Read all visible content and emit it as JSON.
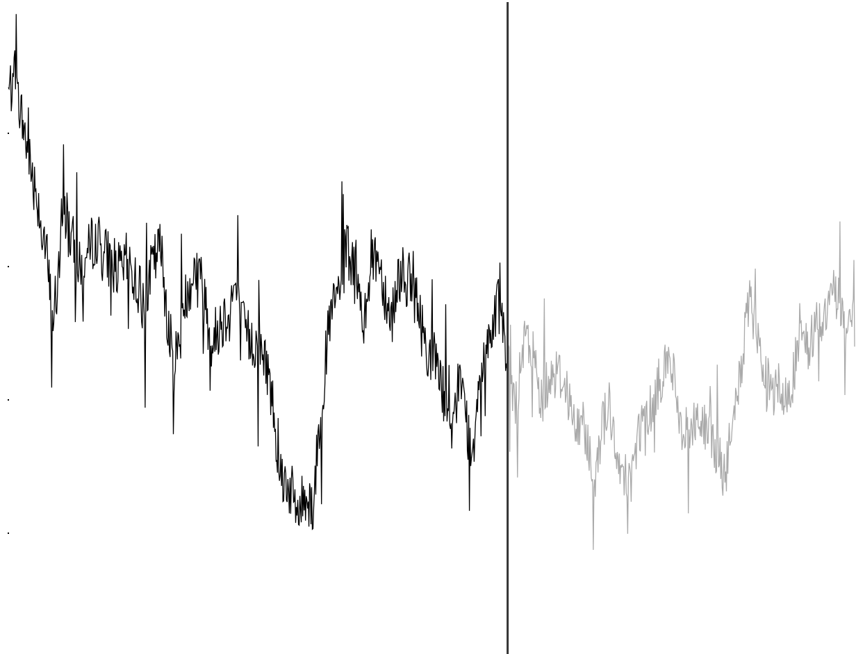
{
  "chart_data": {
    "type": "line",
    "title": "",
    "xlabel": "",
    "ylabel": "",
    "grid": false,
    "legend": "none",
    "y_range": [
      0,
      100
    ],
    "y_ticks": [
      80,
      60,
      40,
      20
    ],
    "split_index": 0.59,
    "colors": {
      "history": "#000000",
      "forecast": "#aaaaaa",
      "divider": "#333333"
    },
    "series": [
      {
        "role": "history",
        "anchors": [
          [
            0.0,
            86
          ],
          [
            0.006,
            88
          ],
          [
            0.015,
            83
          ],
          [
            0.022,
            78
          ],
          [
            0.035,
            70
          ],
          [
            0.045,
            62
          ],
          [
            0.052,
            52
          ],
          [
            0.058,
            57
          ],
          [
            0.066,
            68
          ],
          [
            0.075,
            64
          ],
          [
            0.085,
            59
          ],
          [
            0.095,
            62
          ],
          [
            0.103,
            65
          ],
          [
            0.112,
            62
          ],
          [
            0.122,
            61
          ],
          [
            0.132,
            59
          ],
          [
            0.141,
            61
          ],
          [
            0.15,
            58
          ],
          [
            0.16,
            54
          ],
          [
            0.17,
            60
          ],
          [
            0.18,
            63
          ],
          [
            0.188,
            53
          ],
          [
            0.195,
            45
          ],
          [
            0.202,
            49
          ],
          [
            0.212,
            57
          ],
          [
            0.222,
            60
          ],
          [
            0.232,
            56
          ],
          [
            0.24,
            48
          ],
          [
            0.248,
            51
          ],
          [
            0.258,
            53
          ],
          [
            0.268,
            57
          ],
          [
            0.276,
            51
          ],
          [
            0.286,
            49
          ],
          [
            0.296,
            48
          ],
          [
            0.306,
            45
          ],
          [
            0.314,
            38
          ],
          [
            0.322,
            29
          ],
          [
            0.332,
            27
          ],
          [
            0.342,
            23
          ],
          [
            0.352,
            26
          ],
          [
            0.36,
            24
          ],
          [
            0.37,
            40
          ],
          [
            0.38,
            52
          ],
          [
            0.39,
            56
          ],
          [
            0.4,
            63
          ],
          [
            0.41,
            58
          ],
          [
            0.42,
            52
          ],
          [
            0.428,
            61
          ],
          [
            0.436,
            62
          ],
          [
            0.444,
            57
          ],
          [
            0.452,
            52
          ],
          [
            0.462,
            59
          ],
          [
            0.472,
            58
          ],
          [
            0.48,
            56
          ],
          [
            0.49,
            50
          ],
          [
            0.5,
            46
          ],
          [
            0.508,
            46
          ],
          [
            0.516,
            40
          ],
          [
            0.524,
            32
          ],
          [
            0.532,
            44
          ],
          [
            0.54,
            38
          ],
          [
            0.548,
            31
          ],
          [
            0.556,
            44
          ],
          [
            0.566,
            49
          ],
          [
            0.574,
            52
          ],
          [
            0.58,
            58
          ],
          [
            0.586,
            49
          ],
          [
            0.59,
            47
          ]
        ]
      },
      {
        "role": "forecast",
        "anchors": [
          [
            0.59,
            45
          ],
          [
            0.6,
            39
          ],
          [
            0.61,
            49
          ],
          [
            0.62,
            47
          ],
          [
            0.63,
            40
          ],
          [
            0.64,
            44
          ],
          [
            0.65,
            44
          ],
          [
            0.66,
            42
          ],
          [
            0.67,
            35
          ],
          [
            0.68,
            37
          ],
          [
            0.692,
            28
          ],
          [
            0.7,
            35
          ],
          [
            0.71,
            40
          ],
          [
            0.718,
            30
          ],
          [
            0.726,
            30
          ],
          [
            0.736,
            28
          ],
          [
            0.746,
            36
          ],
          [
            0.756,
            38
          ],
          [
            0.766,
            41
          ],
          [
            0.776,
            46
          ],
          [
            0.786,
            44
          ],
          [
            0.796,
            35
          ],
          [
            0.806,
            35
          ],
          [
            0.816,
            38
          ],
          [
            0.826,
            34
          ],
          [
            0.836,
            33
          ],
          [
            0.846,
            28
          ],
          [
            0.856,
            36
          ],
          [
            0.866,
            45
          ],
          [
            0.876,
            55
          ],
          [
            0.886,
            48
          ],
          [
            0.896,
            43
          ],
          [
            0.906,
            44
          ],
          [
            0.916,
            39
          ],
          [
            0.926,
            43
          ],
          [
            0.936,
            49
          ],
          [
            0.946,
            48
          ],
          [
            0.956,
            52
          ],
          [
            0.966,
            52
          ],
          [
            0.976,
            57
          ],
          [
            0.986,
            53
          ],
          [
            0.996,
            49
          ],
          [
            1.0,
            48
          ]
        ]
      }
    ]
  }
}
